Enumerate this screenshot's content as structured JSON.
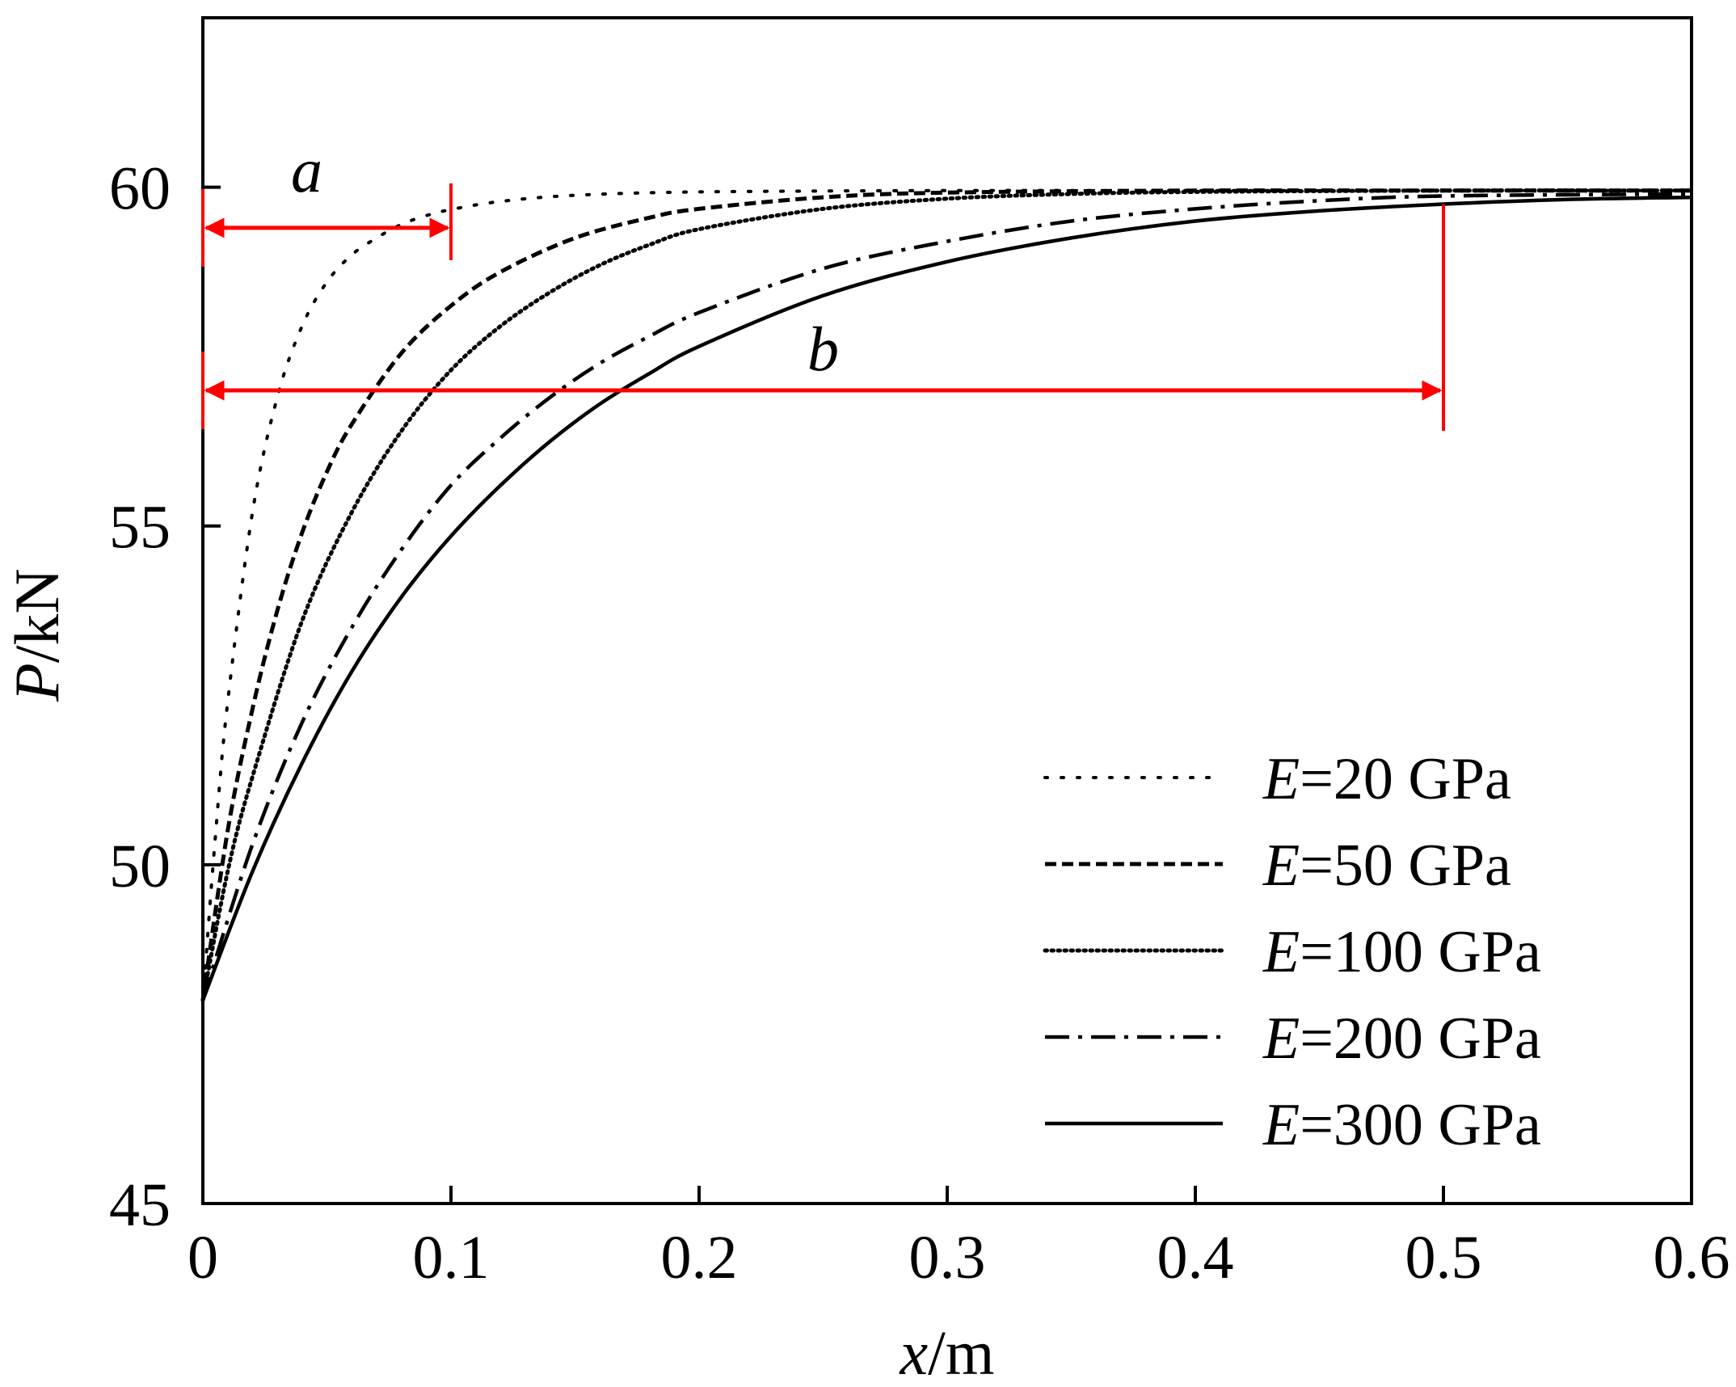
{
  "chart_data": {
    "type": "line",
    "title": "",
    "xlabel": "x/m",
    "ylabel": "P/kN",
    "xlabel_parts": {
      "var": "x",
      "unit": "/m"
    },
    "ylabel_parts": {
      "var": "P",
      "unit": "/kN"
    },
    "xlim": [
      0,
      0.6
    ],
    "ylim": [
      45,
      62.5
    ],
    "xticks": [
      0,
      0.1,
      0.2,
      0.3,
      0.4,
      0.5,
      0.6
    ],
    "xtick_labels": [
      "0",
      "0.1",
      "0.2",
      "0.3",
      "0.4",
      "0.5",
      "0.6"
    ],
    "yticks": [
      45,
      50,
      55,
      60
    ],
    "ytick_labels": [
      "45",
      "50",
      "55",
      "60"
    ],
    "grid": false,
    "legend_position": "bottom-right",
    "series": [
      {
        "name": "E=20 GPa",
        "var": "E",
        "text": "=20 GPa",
        "style": "dotted-sparse",
        "x": [
          0,
          0.005,
          0.01,
          0.02,
          0.03,
          0.04,
          0.05,
          0.06,
          0.07,
          0.08,
          0.09,
          0.1,
          0.12,
          0.15,
          0.2,
          0.3,
          0.4,
          0.5,
          0.6
        ],
        "values": [
          48,
          50.4,
          52.4,
          55.2,
          56.9,
          57.95,
          58.6,
          59.0,
          59.25,
          59.45,
          59.58,
          59.67,
          59.79,
          59.88,
          59.93,
          59.95,
          59.95,
          59.95,
          59.95
        ]
      },
      {
        "name": "E=50 GPa",
        "var": "E",
        "text": "=50 GPa",
        "style": "dashed",
        "x": [
          0,
          0.01,
          0.02,
          0.03,
          0.04,
          0.05,
          0.06,
          0.08,
          0.1,
          0.12,
          0.15,
          0.18,
          0.2,
          0.25,
          0.3,
          0.4,
          0.5,
          0.6
        ],
        "values": [
          48,
          50.5,
          52.3,
          53.75,
          54.9,
          55.8,
          56.5,
          57.55,
          58.25,
          58.75,
          59.25,
          59.55,
          59.68,
          59.85,
          59.92,
          59.95,
          59.95,
          59.95
        ]
      },
      {
        "name": "E=100 GPa",
        "var": "E",
        "text": "=100 GPa",
        "style": "dotted-dense",
        "x": [
          0,
          0.01,
          0.02,
          0.04,
          0.06,
          0.08,
          0.1,
          0.12,
          0.14,
          0.16,
          0.18,
          0.2,
          0.25,
          0.3,
          0.35,
          0.4,
          0.5,
          0.6
        ],
        "values": [
          48,
          49.9,
          51.3,
          53.6,
          55.2,
          56.4,
          57.3,
          57.95,
          58.45,
          58.85,
          59.15,
          59.38,
          59.68,
          59.83,
          59.9,
          59.93,
          59.95,
          59.95
        ]
      },
      {
        "name": "E=200 GPa",
        "var": "E",
        "text": "=200 GPa",
        "style": "dash-dot",
        "x": [
          0,
          0.02,
          0.04,
          0.06,
          0.08,
          0.1,
          0.12,
          0.14,
          0.16,
          0.18,
          0.2,
          0.25,
          0.3,
          0.35,
          0.4,
          0.45,
          0.5,
          0.6
        ],
        "values": [
          48,
          50.3,
          52.1,
          53.5,
          54.65,
          55.6,
          56.3,
          56.9,
          57.4,
          57.8,
          58.15,
          58.8,
          59.2,
          59.5,
          59.68,
          59.8,
          59.87,
          59.9
        ]
      },
      {
        "name": "E=300 GPa",
        "var": "E",
        "text": "=300 GPa",
        "style": "solid",
        "x": [
          0,
          0.02,
          0.04,
          0.06,
          0.08,
          0.1,
          0.12,
          0.14,
          0.16,
          0.18,
          0.2,
          0.25,
          0.3,
          0.35,
          0.4,
          0.45,
          0.5,
          0.55,
          0.6
        ],
        "values": [
          48,
          49.9,
          51.5,
          52.85,
          53.95,
          54.85,
          55.6,
          56.25,
          56.8,
          57.25,
          57.65,
          58.4,
          58.9,
          59.25,
          59.5,
          59.65,
          59.75,
          59.82,
          59.85
        ]
      }
    ],
    "annotations": [
      {
        "label": "a",
        "color": "#ff0000",
        "x_from": 0,
        "x_to": 0.1,
        "y": 59.4
      },
      {
        "label": "b",
        "color": "#ff0000",
        "x_from": 0,
        "x_to": 0.5,
        "y": 57.0
      }
    ]
  }
}
